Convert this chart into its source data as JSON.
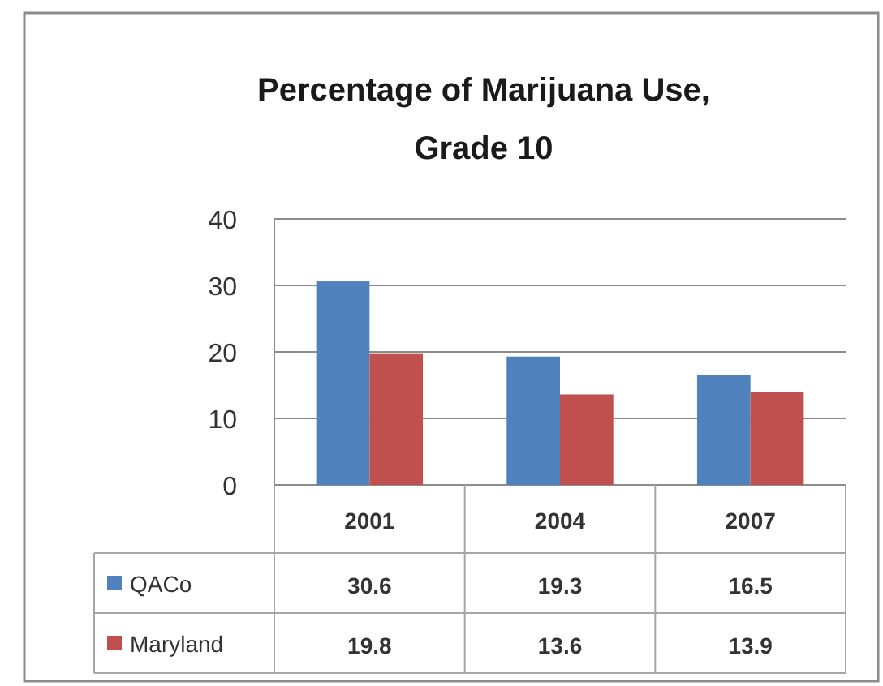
{
  "chart_data": {
    "type": "bar",
    "title": "Percentage of Marijuana Use, Grade 10",
    "categories": [
      "2001",
      "2004",
      "2007"
    ],
    "series": [
      {
        "name": "QACo",
        "color": "#4f81bd",
        "values": [
          30.6,
          19.3,
          16.5
        ]
      },
      {
        "name": "Maryland",
        "color": "#c0504d",
        "values": [
          19.8,
          13.6,
          13.9
        ]
      }
    ],
    "ylim": [
      0,
      40
    ],
    "yticks": [
      0,
      10,
      20,
      30,
      40
    ],
    "grid": "y",
    "data_labels": true,
    "legend": "bottom"
  }
}
